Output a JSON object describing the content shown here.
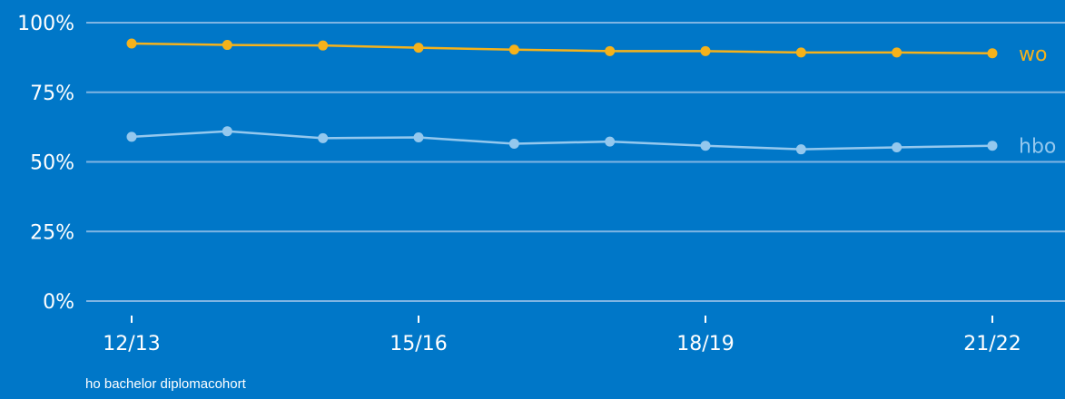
{
  "chart_data": {
    "type": "line",
    "title": "",
    "xlabel": "ho bachelor diplomacohort",
    "ylabel": "",
    "ylim": [
      0,
      100
    ],
    "y_ticks": [
      "0%",
      "25%",
      "50%",
      "75%",
      "100%"
    ],
    "y_tick_values": [
      0,
      25,
      50,
      75,
      100
    ],
    "x_ticks": [
      "12/13",
      "15/16",
      "18/19",
      "21/22"
    ],
    "x_tick_indices": [
      0,
      3,
      6,
      9
    ],
    "categories": [
      "12/13",
      "13/14",
      "14/15",
      "15/16",
      "16/17",
      "17/18",
      "18/19",
      "19/20",
      "20/21",
      "21/22"
    ],
    "grid": true,
    "legend": "series labels at right end of lines",
    "series": [
      {
        "name": "wo",
        "color": "#f5b21b",
        "values": [
          92.5,
          92,
          91.8,
          91,
          90.3,
          89.8,
          89.8,
          89.3,
          89.3,
          89
        ]
      },
      {
        "name": "hbo",
        "color": "#94c8ee",
        "values": [
          59,
          61,
          58.5,
          58.8,
          56.5,
          57.3,
          55.8,
          54.5,
          55.2,
          55.8
        ]
      }
    ]
  }
}
